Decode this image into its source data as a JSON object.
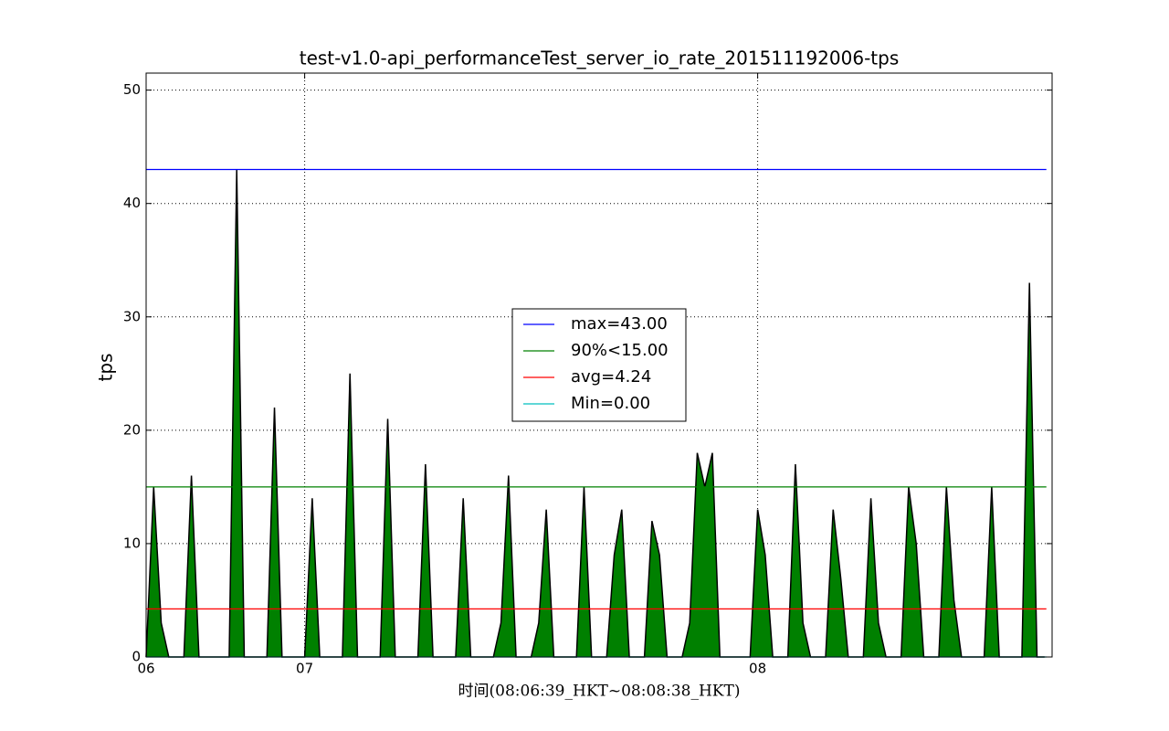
{
  "chart_data": {
    "type": "area",
    "title": "test-v1.0-api_performanceTest_server_io_rate_201511192006-tps",
    "ylabel": "tps",
    "xlabel": "时间(08:06:39_HKT~08:08:38_HKT)",
    "x": [
      0,
      1,
      2,
      3,
      4,
      5,
      6,
      7,
      8,
      9,
      10,
      11,
      12,
      13,
      14,
      15,
      16,
      17,
      18,
      19,
      20,
      21,
      22,
      23,
      24,
      25,
      26,
      27,
      28,
      29,
      30,
      31,
      32,
      33,
      34,
      35,
      36,
      37,
      38,
      39,
      40,
      41,
      42,
      43,
      44,
      45,
      46,
      47,
      48,
      49,
      50,
      51,
      52,
      53,
      54,
      55,
      56,
      57,
      58,
      59,
      60,
      61,
      62,
      63,
      64,
      65,
      66,
      67,
      68,
      69,
      70,
      71,
      72,
      73,
      74,
      75,
      76,
      77,
      78,
      79,
      80,
      81,
      82,
      83,
      84,
      85,
      86,
      87,
      88,
      89,
      90,
      91,
      92,
      93,
      94,
      95,
      96,
      97,
      98,
      99,
      100,
      101,
      102,
      103,
      104,
      105,
      106,
      107,
      108,
      109,
      110,
      111,
      112,
      113,
      114,
      115,
      116,
      117,
      118,
      119
    ],
    "series": [
      {
        "name": "tps",
        "color": "#008000",
        "edge_color": "#000000",
        "values": [
          0,
          15,
          3,
          0,
          0,
          0,
          16,
          0,
          0,
          0,
          0,
          0,
          43,
          0,
          0,
          0,
          0,
          22,
          0,
          0,
          0,
          0,
          14,
          0,
          0,
          0,
          0,
          25,
          0,
          0,
          0,
          0,
          21,
          0,
          0,
          0,
          0,
          17,
          0,
          0,
          0,
          0,
          14,
          0,
          0,
          0,
          0,
          3,
          16,
          0,
          0,
          0,
          3,
          13,
          0,
          0,
          0,
          0,
          15,
          0,
          0,
          0,
          9,
          13,
          0,
          0,
          0,
          12,
          9,
          0,
          0,
          0,
          3,
          18,
          15,
          18,
          0,
          0,
          0,
          0,
          0,
          13,
          9,
          0,
          0,
          0,
          17,
          3,
          0,
          0,
          0,
          13,
          7,
          0,
          0,
          0,
          14,
          3,
          0,
          0,
          0,
          15,
          10,
          0,
          0,
          0,
          15,
          5,
          0,
          0,
          0,
          0,
          15,
          0,
          0,
          0,
          0,
          33,
          0,
          0
        ]
      }
    ],
    "reference_lines": [
      {
        "name": "max=43.00",
        "color": "#0000ff",
        "value": 43
      },
      {
        "name": "90%<15.00",
        "color": "#008000",
        "value": 15
      },
      {
        "name": "avg=4.24",
        "color": "#ff0000",
        "value": 4.24
      },
      {
        "name": "Min=0.00",
        "color": "#00bfbf",
        "value": 0
      }
    ],
    "xlim": [
      0,
      120
    ],
    "xticks": [
      {
        "value": 0,
        "label": "06"
      },
      {
        "value": 21,
        "label": "07"
      },
      {
        "value": 81,
        "label": "08"
      }
    ],
    "ylim": [
      0,
      51.5
    ],
    "yticks": [
      0,
      10,
      20,
      30,
      40,
      50
    ],
    "grid": true,
    "legend": "center"
  }
}
